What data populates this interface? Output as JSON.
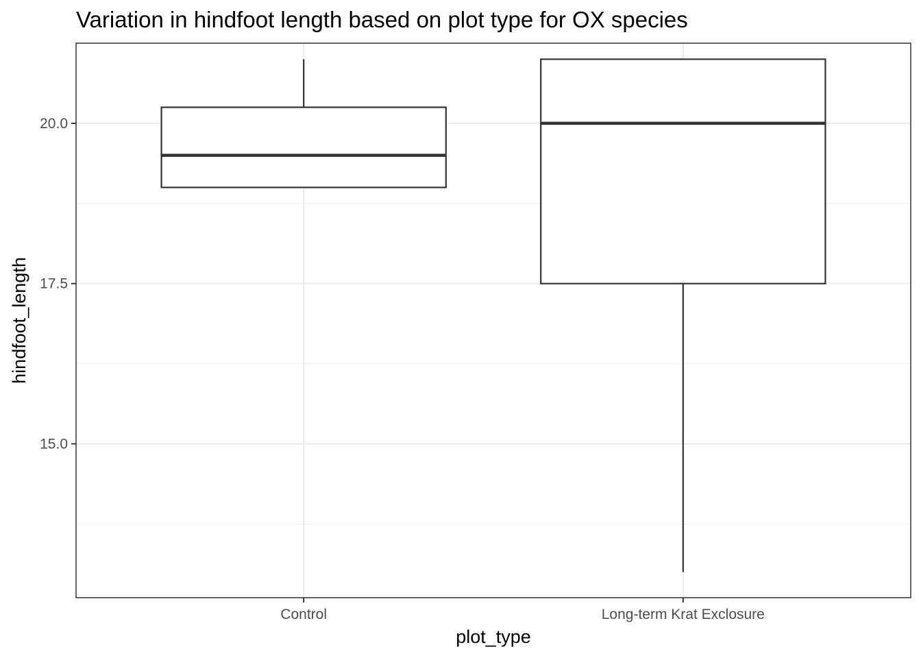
{
  "chart_data": {
    "type": "boxplot",
    "title": "Variation in hindfoot length based on plot type for OX species",
    "xlabel": "plot_type",
    "ylabel": "hindfoot_length",
    "categories": [
      "Control",
      "Long-term Krat Exclosure"
    ],
    "boxes": [
      {
        "category": "Control",
        "whisker_low": 19.0,
        "q1": 19.0,
        "median": 19.5,
        "q3": 20.25,
        "whisker_high": 21.0
      },
      {
        "category": "Long-term Krat Exclosure",
        "whisker_low": 13.0,
        "q1": 17.5,
        "median": 20.0,
        "q3": 21.0,
        "whisker_high": 21.0
      }
    ],
    "ylim": [
      12.6,
      21.25
    ],
    "yticks": [
      15.0,
      17.5,
      20.0
    ],
    "ytick_labels": [
      "15.0",
      "17.5",
      "20.0"
    ],
    "grid": true,
    "theme": "bw",
    "colors": {
      "box_stroke": "#333333",
      "box_fill": "#ffffff",
      "grid_major": "#ebebeb",
      "grid_minor": "#f2f2f2",
      "panel_border": "#333333",
      "tick_color": "#333333",
      "tick_label": "#4d4d4d"
    }
  }
}
